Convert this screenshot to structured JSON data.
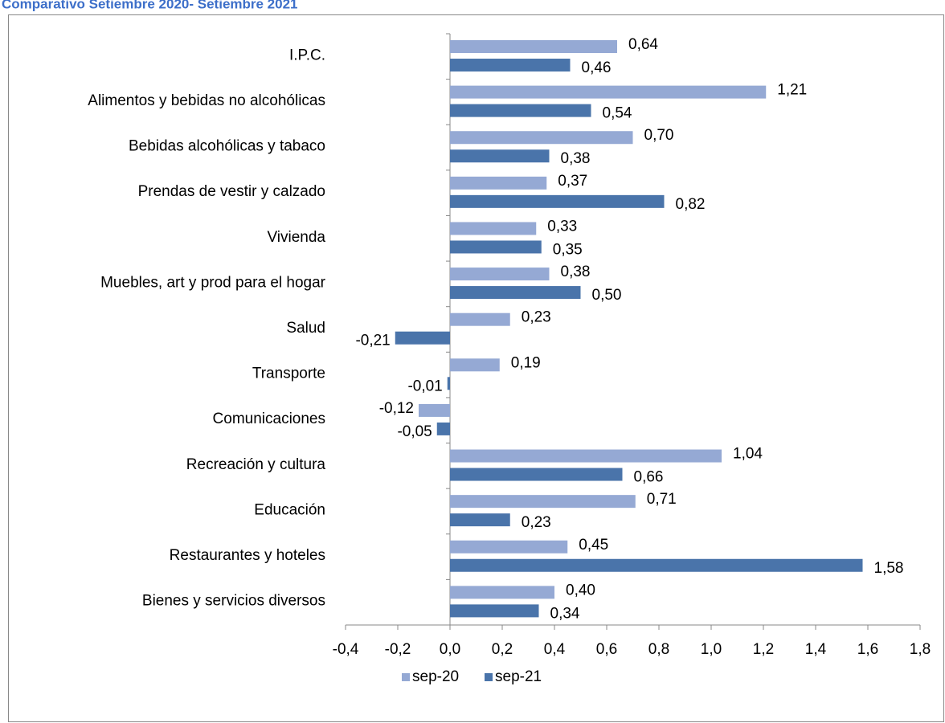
{
  "chart_data": {
    "type": "hbar",
    "title": "Comparativo Setiembre 2020- Setiembre 2021",
    "categories": [
      "I.P.C.",
      "Alimentos y bebidas no alcohólicas",
      "Bebidas alcohólicas y tabaco",
      "Prendas de vestir y calzado",
      "Vivienda",
      "Muebles, art y prod para el hogar",
      "Salud",
      "Transporte",
      "Comunicaciones",
      "Recreación y cultura",
      "Educación",
      "Restaurantes y hoteles",
      "Bienes y servicios diversos"
    ],
    "series": [
      {
        "name": "sep-20",
        "color": "#95a9d4",
        "values": [
          0.64,
          1.21,
          0.7,
          0.37,
          0.33,
          0.38,
          0.23,
          0.19,
          -0.12,
          1.04,
          0.71,
          0.45,
          0.4
        ],
        "value_labels": [
          "0,64",
          "1,21",
          "0,70",
          "0,37",
          "0,33",
          "0,38",
          "0,23",
          "0,19",
          "-0,12",
          "1,04",
          "0,71",
          "0,45",
          "0,40"
        ]
      },
      {
        "name": "sep-21",
        "color": "#4a74aa",
        "values": [
          0.46,
          0.54,
          0.38,
          0.82,
          0.35,
          0.5,
          -0.21,
          -0.01,
          -0.05,
          0.66,
          0.23,
          1.58,
          0.34
        ],
        "value_labels": [
          "0,46",
          "0,54",
          "0,38",
          "0,82",
          "0,35",
          "0,50",
          "-0,21",
          "-0,01",
          "-0,05",
          "0,66",
          "0,23",
          "1,58",
          "0,34"
        ]
      }
    ],
    "xlim": [
      -0.4,
      1.8
    ],
    "xticks": [
      {
        "value": -0.4,
        "label": "-0,4"
      },
      {
        "value": -0.2,
        "label": "-0,2"
      },
      {
        "value": 0,
        "label": "0,0"
      },
      {
        "value": 0.2,
        "label": "0,2"
      },
      {
        "value": 0.4,
        "label": "0,4"
      },
      {
        "value": 0.6,
        "label": "0,6"
      },
      {
        "value": 0.8,
        "label": "0,8"
      },
      {
        "value": 1.0,
        "label": "1,0"
      },
      {
        "value": 1.2,
        "label": "1,2"
      },
      {
        "value": 1.4,
        "label": "1,4"
      },
      {
        "value": 1.6,
        "label": "1,6"
      },
      {
        "value": 1.8,
        "label": "1,8"
      }
    ],
    "grid": false,
    "legend": "bottom"
  }
}
